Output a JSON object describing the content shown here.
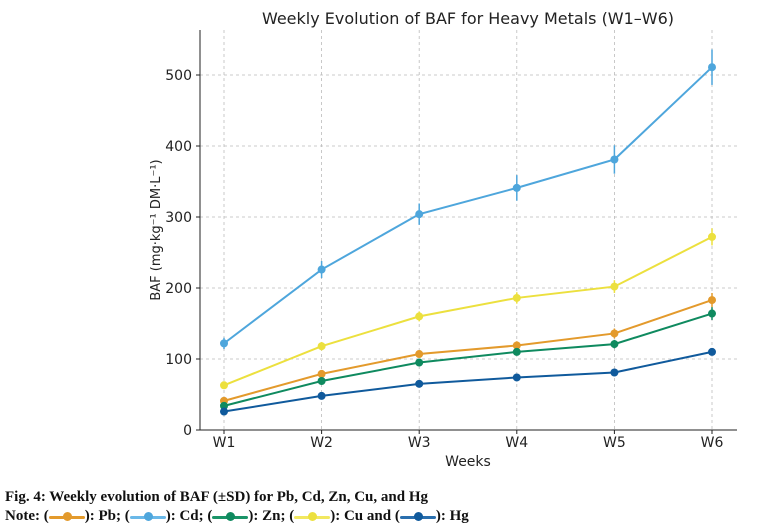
{
  "chart_data": {
    "type": "line",
    "title": "Weekly Evolution of BAF for Heavy Metals (W1–W6)",
    "xlabel": "Weeks",
    "ylabel": "BAF (mg·kg⁻¹ DM·L⁻¹)",
    "categories": [
      "W1",
      "W2",
      "W3",
      "W4",
      "W5",
      "W6"
    ],
    "ylim": [
      0,
      560
    ],
    "yticks": [
      0,
      100,
      200,
      300,
      400,
      500
    ],
    "grid": true,
    "error_bars": "±SD",
    "series": [
      {
        "name": "Cd",
        "color": "#4ea6dc",
        "values": [
          122,
          226,
          304,
          341,
          381,
          511
        ],
        "sd": [
          8,
          12,
          15,
          18,
          20,
          25
        ]
      },
      {
        "name": "Cu",
        "color": "#ece03e",
        "values": [
          63,
          118,
          160,
          186,
          202,
          272
        ],
        "sd": [
          4,
          6,
          7,
          8,
          9,
          12
        ]
      },
      {
        "name": "Pb",
        "color": "#e39a2c",
        "values": [
          41,
          79,
          107,
          119,
          136,
          183
        ],
        "sd": [
          3,
          4,
          5,
          6,
          7,
          10
        ]
      },
      {
        "name": "Zn",
        "color": "#0f8a5f",
        "values": [
          34,
          69,
          95,
          110,
          121,
          164
        ],
        "sd": [
          3,
          4,
          4,
          5,
          6,
          9
        ]
      },
      {
        "name": "Hg",
        "color": "#105a9c",
        "values": [
          26,
          48,
          65,
          74,
          81,
          110
        ],
        "sd": [
          2,
          3,
          3,
          3,
          4,
          5
        ]
      }
    ]
  },
  "caption": {
    "line1": "Fig. 4: Weekly evolution of BAF (±SD) for Pb, Cd, Zn, Cu, and Hg",
    "note_prefix": "Note: (",
    "pb": "): Pb; (",
    "cd": "): Cd; (",
    "zn": "): Zn; (",
    "cu": "): Cu and (",
    "hg": "): Hg"
  }
}
